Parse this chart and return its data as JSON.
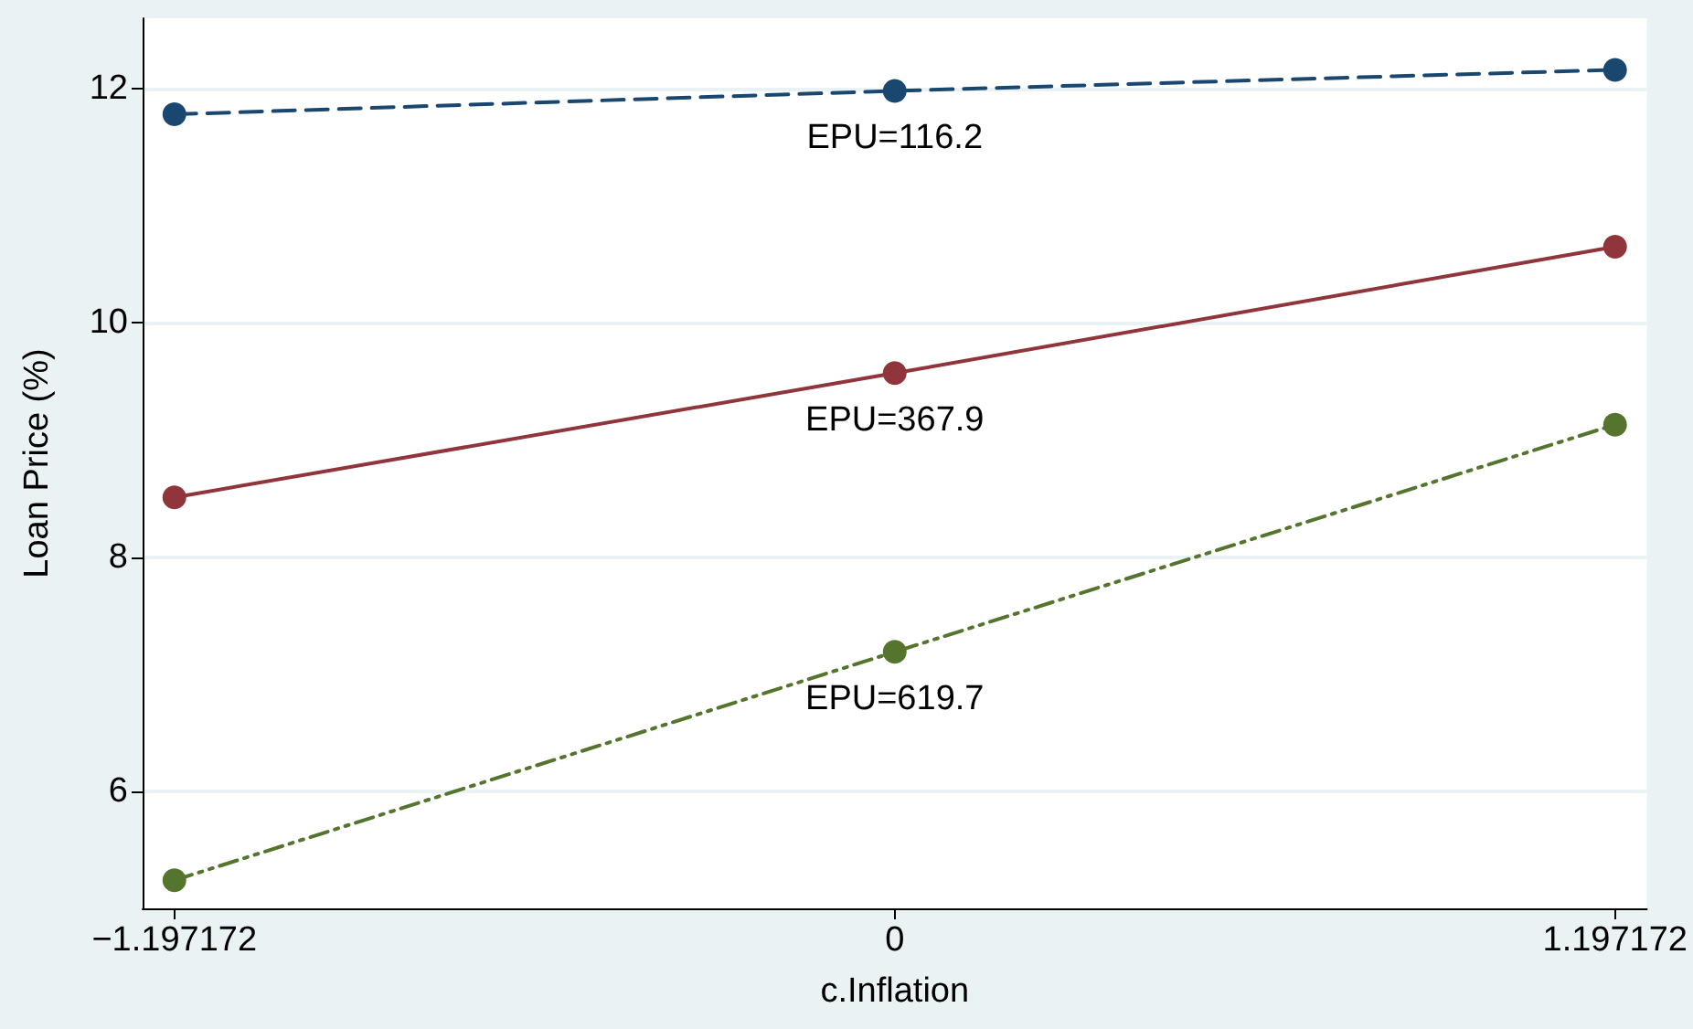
{
  "chart_data": {
    "type": "line",
    "xlabel": "c.Inflation",
    "ylabel": "Loan Price (%)",
    "x": [
      -1.197172,
      0,
      1.197172
    ],
    "series": [
      {
        "name": "EPU=116.2",
        "color": "#1a476f",
        "line_style": "dashed",
        "values": [
          11.78,
          11.98,
          12.16
        ]
      },
      {
        "name": "EPU=367.9",
        "color": "#90353b",
        "line_style": "solid",
        "values": [
          8.51,
          9.57,
          10.65
        ]
      },
      {
        "name": "EPU=619.7",
        "color": "#55752f",
        "line_style": "dotted",
        "values": [
          5.24,
          7.19,
          9.13
        ]
      }
    ],
    "xlim": [
      -1.25,
      1.25
    ],
    "xticks": [
      -1.197172,
      0,
      1.197172
    ],
    "ylim": [
      5,
      12.6
    ],
    "yticks": [
      6,
      8,
      10,
      12
    ],
    "grid": "y",
    "marker": "circle",
    "legend": false
  }
}
